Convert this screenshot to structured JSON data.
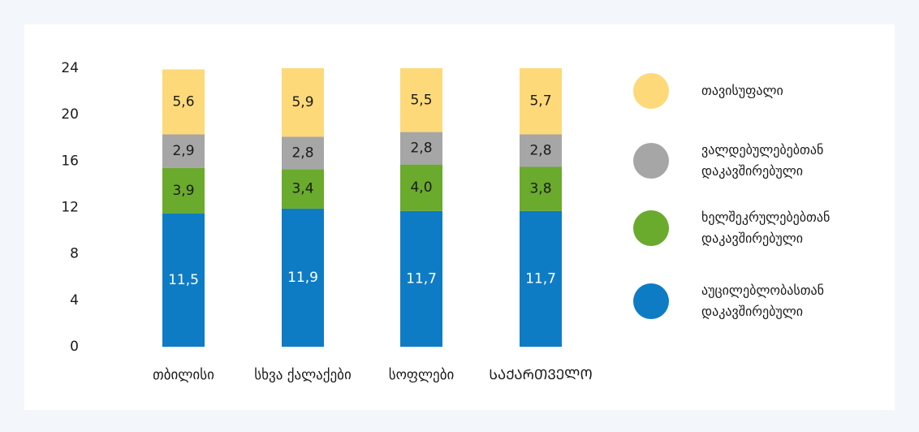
{
  "chart_data": {
    "type": "stacked_bar",
    "categories": [
      "თბილისი",
      "სხვა ქალაქები",
      "სოფლები",
      "ᲡᲐᲥᲐᲠᲗᲕᲔᲚᲝ"
    ],
    "series": [
      {
        "name": "აუცილებლობასთან დაკავშირებული",
        "color": "#0e7cc4",
        "label_color": "#ffffff",
        "values": [
          11.5,
          11.9,
          11.7,
          11.7
        ],
        "value_labels": [
          "11,5",
          "11,9",
          "11,7",
          "11,7"
        ]
      },
      {
        "name": "ხელშეკრულებებთან დაკავშირებული",
        "color": "#6aaa2c",
        "label_color": "#1a1a1a",
        "values": [
          3.9,
          3.4,
          4,
          3.8
        ],
        "value_labels": [
          "3,9",
          "3,4",
          "4,0",
          "3,8"
        ]
      },
      {
        "name": "ვალდებულებებთან დაკავშირებული",
        "color": "#a6a6a6",
        "label_color": "#1a1a1a",
        "values": [
          2.9,
          2.8,
          2.8,
          2.8
        ],
        "value_labels": [
          "2,9",
          "2,8",
          "2,8",
          "2,8"
        ]
      },
      {
        "name": "თავისუფალი",
        "color": "#fdd97a",
        "label_color": "#1a1a1a",
        "values": [
          5.6,
          5.9,
          5.5,
          5.7
        ],
        "value_labels": [
          "5,6",
          "5,9",
          "5,5",
          "5,7"
        ]
      }
    ],
    "ylim": [
      0,
      24
    ],
    "yticks": [
      0,
      4,
      8,
      12,
      16,
      20,
      24
    ],
    "grid": false,
    "legend": "right"
  }
}
